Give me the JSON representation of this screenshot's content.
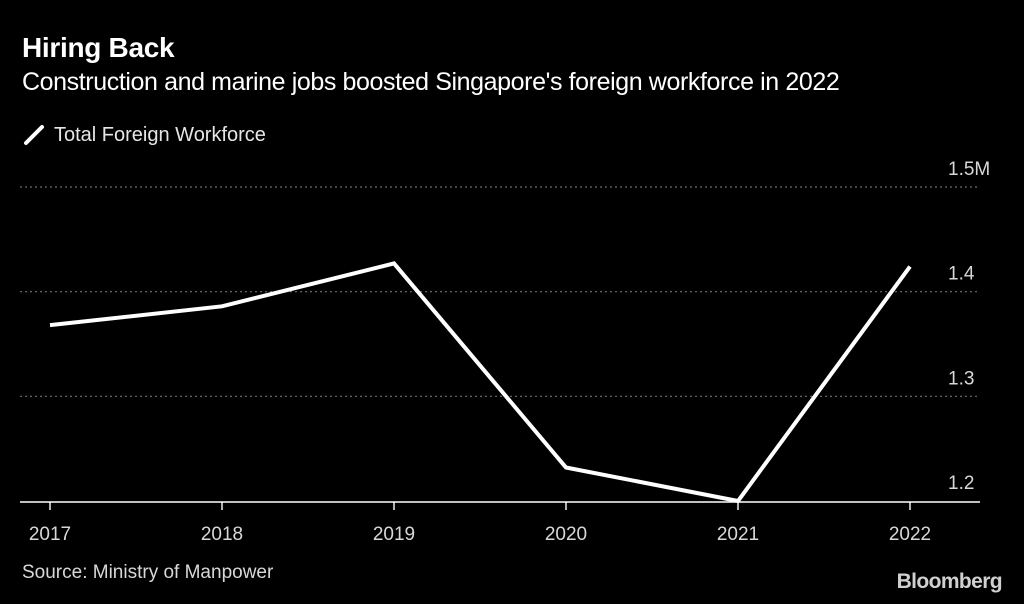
{
  "chart_data": {
    "type": "line",
    "title": "Hiring Back",
    "subtitle": "Construction and marine jobs boosted Singapore's foreign workforce in 2022",
    "legend": [
      "Total Foreign Workforce"
    ],
    "legend_position": "top-left",
    "categories": [
      "2017",
      "2018",
      "2019",
      "2020",
      "2021",
      "2022"
    ],
    "series": [
      {
        "name": "Total Foreign Workforce",
        "values": [
          1.368,
          1.386,
          1.427,
          1.232,
          1.2,
          1.424
        ]
      }
    ],
    "y_ticks": [
      1.2,
      1.3,
      1.4,
      1.5
    ],
    "y_tick_labels": [
      "1.2",
      "1.3",
      "1.4",
      "1.5M"
    ],
    "ylim": [
      1.2,
      1.5
    ],
    "grid": true,
    "y_axis_side": "right",
    "xlabel": "",
    "ylabel": "",
    "line_color": "#ffffff",
    "grid_color": "#6e6e6e"
  },
  "footer": {
    "source": "Source: Ministry of Manpower",
    "brand": "Bloomberg"
  }
}
